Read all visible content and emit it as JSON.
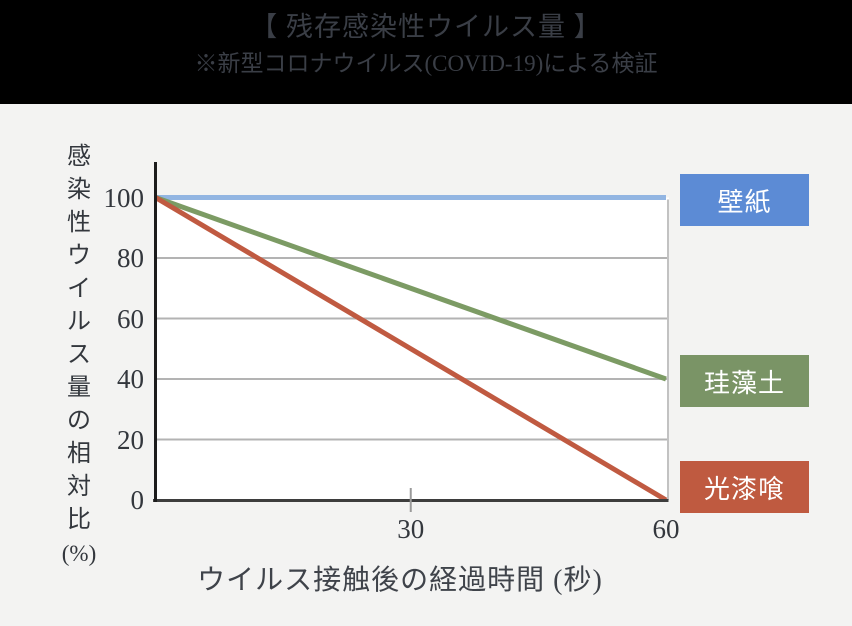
{
  "header": {
    "title": "【 残存感染性ウイルス量 】",
    "subtitle": "※新型コロナウイルス(COVID-19)による検証"
  },
  "colors": {
    "header_bg": "#000000",
    "header_text": "#3a3e46",
    "page_bg": "#f3f3f2",
    "plot_bg": "#ffffff",
    "gridline": "#b3b3b3",
    "plot_right_border": "#c2c2c2",
    "x_axis": "#3d3d3d",
    "y_axis": "#1c1c1c",
    "tick_mark": "#9a9a9a",
    "tick_text": "#33373d"
  },
  "chart_data": {
    "type": "line",
    "title": "【 残存感染性ウイルス量 】",
    "subtitle": "※新型コロナウイルス(COVID-19)による検証",
    "xlabel": "ウイルス接触後の経過時間 (秒)",
    "ylabel": "感染性ウイルス量の相対比(%)",
    "xlim": [
      0,
      60
    ],
    "ylim": [
      0,
      100
    ],
    "x": [
      0,
      60
    ],
    "x_ticks": [
      30,
      60
    ],
    "y_ticks": [
      100,
      80,
      60,
      40,
      20,
      0
    ],
    "grid_y": [
      20,
      40,
      60,
      80
    ],
    "grid": "horizontal",
    "legend_position": "right",
    "series": [
      {
        "name": "壁紙",
        "values": [
          100,
          100
        ],
        "line_color": "#92b5e2",
        "legend_color": "#5c8bd5"
      },
      {
        "name": "珪藻土",
        "values": [
          100,
          40
        ],
        "line_color": "#7c9b64",
        "legend_color": "#7a9466"
      },
      {
        "name": "光漆喰",
        "values": [
          100,
          0
        ],
        "line_color": "#c05a41",
        "legend_color": "#bf5a40"
      }
    ]
  }
}
